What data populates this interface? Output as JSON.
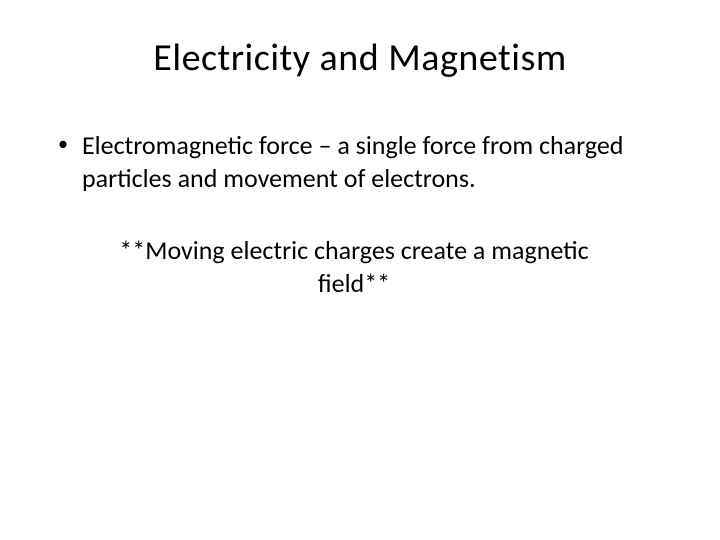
{
  "slide": {
    "title": "Electricity and Magnetism",
    "title_fontsize": 38,
    "title_color": "#000000",
    "background_color": "#ffffff",
    "bullet": {
      "marker": "•",
      "text": "Electromagnetic force – a single force from charged particles and movement of electrons.",
      "fontsize": 26,
      "color": "#000000"
    },
    "emphasis": {
      "text": "**Moving electric charges create a magnetic field**",
      "fontsize": 26,
      "color": "#000000"
    }
  }
}
